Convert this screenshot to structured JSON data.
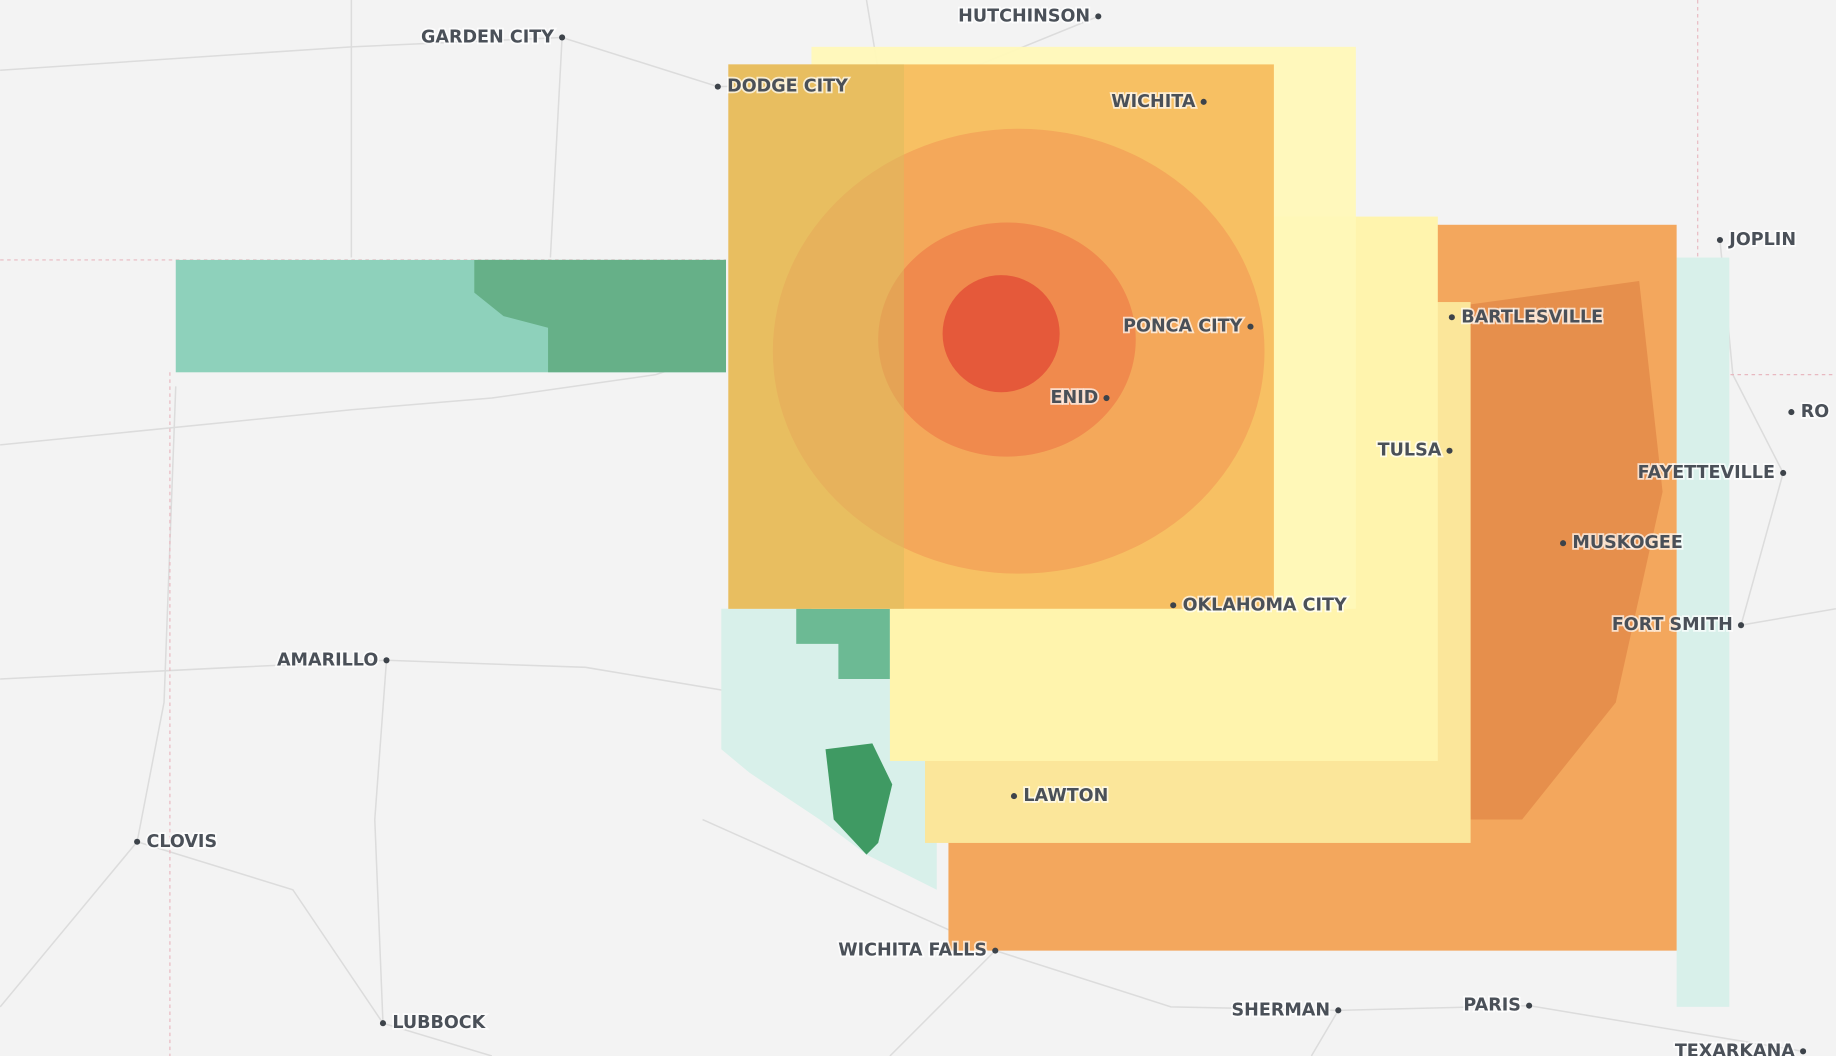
{
  "map": {
    "cities": [
      {
        "name": "HUTCHINSON"
      },
      {
        "name": "GARDEN CITY"
      },
      {
        "name": "DODGE CITY"
      },
      {
        "name": "WICHITA"
      },
      {
        "name": "JOPLIN"
      },
      {
        "name": "BARTLESVILLE"
      },
      {
        "name": "PONCA CITY"
      },
      {
        "name": "ENID"
      },
      {
        "name": "RO"
      },
      {
        "name": "TULSA"
      },
      {
        "name": "FAYETTEVILLE"
      },
      {
        "name": "MUSKOGEE"
      },
      {
        "name": "OKLAHOMA CITY"
      },
      {
        "name": "FORT SMITH"
      },
      {
        "name": "AMARILLO"
      },
      {
        "name": "LAWTON"
      },
      {
        "name": "CLOVIS"
      },
      {
        "name": "WICHITA FALLS"
      },
      {
        "name": "PARIS"
      },
      {
        "name": "SHERMAN"
      },
      {
        "name": "LUBBOCK"
      },
      {
        "name": "TEXARKANA"
      }
    ]
  }
}
